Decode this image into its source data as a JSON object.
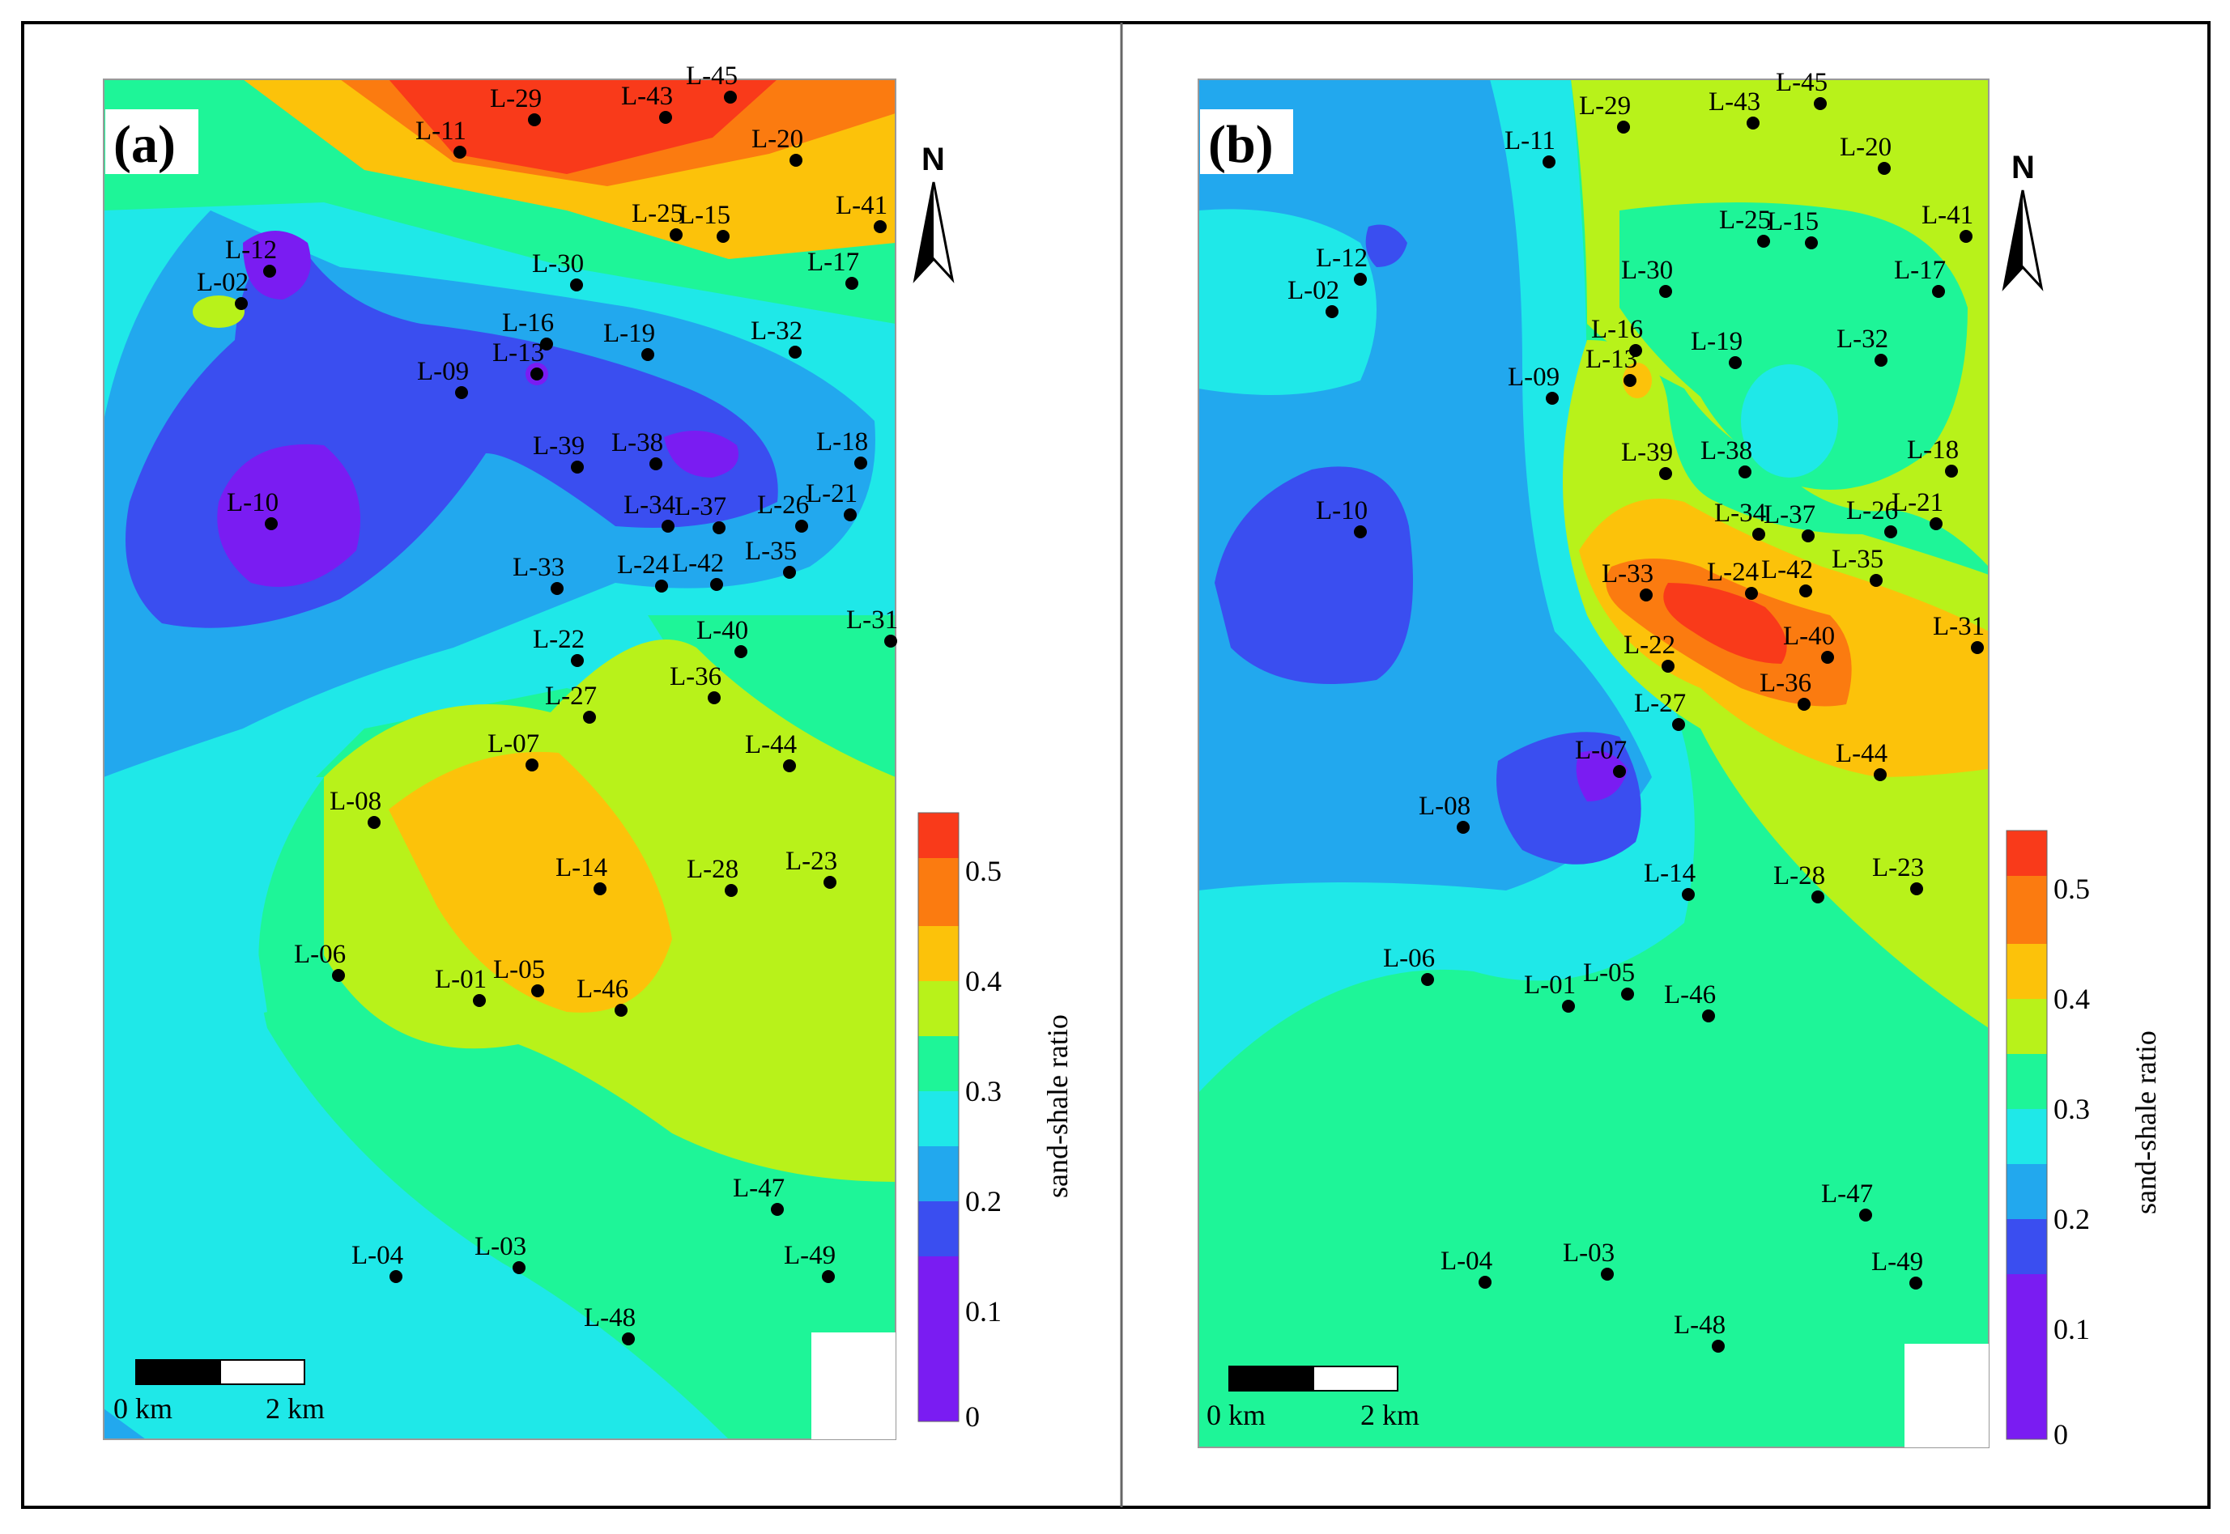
{
  "panels": [
    {
      "letter": "(a)",
      "north": "N",
      "scale": {
        "start": "0 km",
        "end": "2 km"
      },
      "colorbar": {
        "title": "sand-shale ratio",
        "ticks": [
          "0.5",
          "0.4",
          "0.3",
          "0.2",
          "0.1",
          "0"
        ]
      },
      "wells": [
        "L-29",
        "L-43",
        "L-45",
        "L-11",
        "L-20",
        "L-41",
        "L-25",
        "L-15",
        "L-17",
        "L-12",
        "L-02",
        "L-30",
        "L-16",
        "L-19",
        "L-32",
        "L-09",
        "L-13",
        "L-39",
        "L-38",
        "L-18",
        "L-10",
        "L-34",
        "L-37",
        "L-26",
        "L-21",
        "L-33",
        "L-24",
        "L-42",
        "L-35",
        "L-31",
        "L-22",
        "L-40",
        "L-36",
        "L-27",
        "L-44",
        "L-07",
        "L-08",
        "L-14",
        "L-28",
        "L-23",
        "L-06",
        "L-01",
        "L-05",
        "L-46",
        "L-47",
        "L-49",
        "L-04",
        "L-03",
        "L-48"
      ]
    },
    {
      "letter": "(b)",
      "north": "N",
      "scale": {
        "start": "0 km",
        "end": "2 km"
      },
      "colorbar": {
        "title": "sand-shale ratio",
        "ticks": [
          "0.5",
          "0.4",
          "0.3",
          "0.2",
          "0.1",
          "0"
        ]
      },
      "wells": [
        "L-29",
        "L-43",
        "L-45",
        "L-11",
        "L-20",
        "L-41",
        "L-25",
        "L-15",
        "L-17",
        "L-12",
        "L-02",
        "L-30",
        "L-16",
        "L-19",
        "L-32",
        "L-09",
        "L-13",
        "L-39",
        "L-38",
        "L-18",
        "L-10",
        "L-34",
        "L-37",
        "L-26",
        "L-21",
        "L-33",
        "L-24",
        "L-42",
        "L-35",
        "L-31",
        "L-22",
        "L-40",
        "L-36",
        "L-27",
        "L-44",
        "L-07",
        "L-08",
        "L-14",
        "L-28",
        "L-23",
        "L-06",
        "L-01",
        "L-05",
        "L-46",
        "L-47",
        "L-49",
        "L-04",
        "L-03",
        "L-48"
      ]
    }
  ],
  "colors": {
    "c0": "#7a1cf2",
    "c1": "#3a4ef0",
    "c2": "#22a8ee",
    "c3": "#1fe8e8",
    "c4": "#1ef598",
    "c5": "#b8f21a",
    "c6": "#fcc20a",
    "c7": "#fb7b10",
    "c8": "#f93a1a"
  }
}
